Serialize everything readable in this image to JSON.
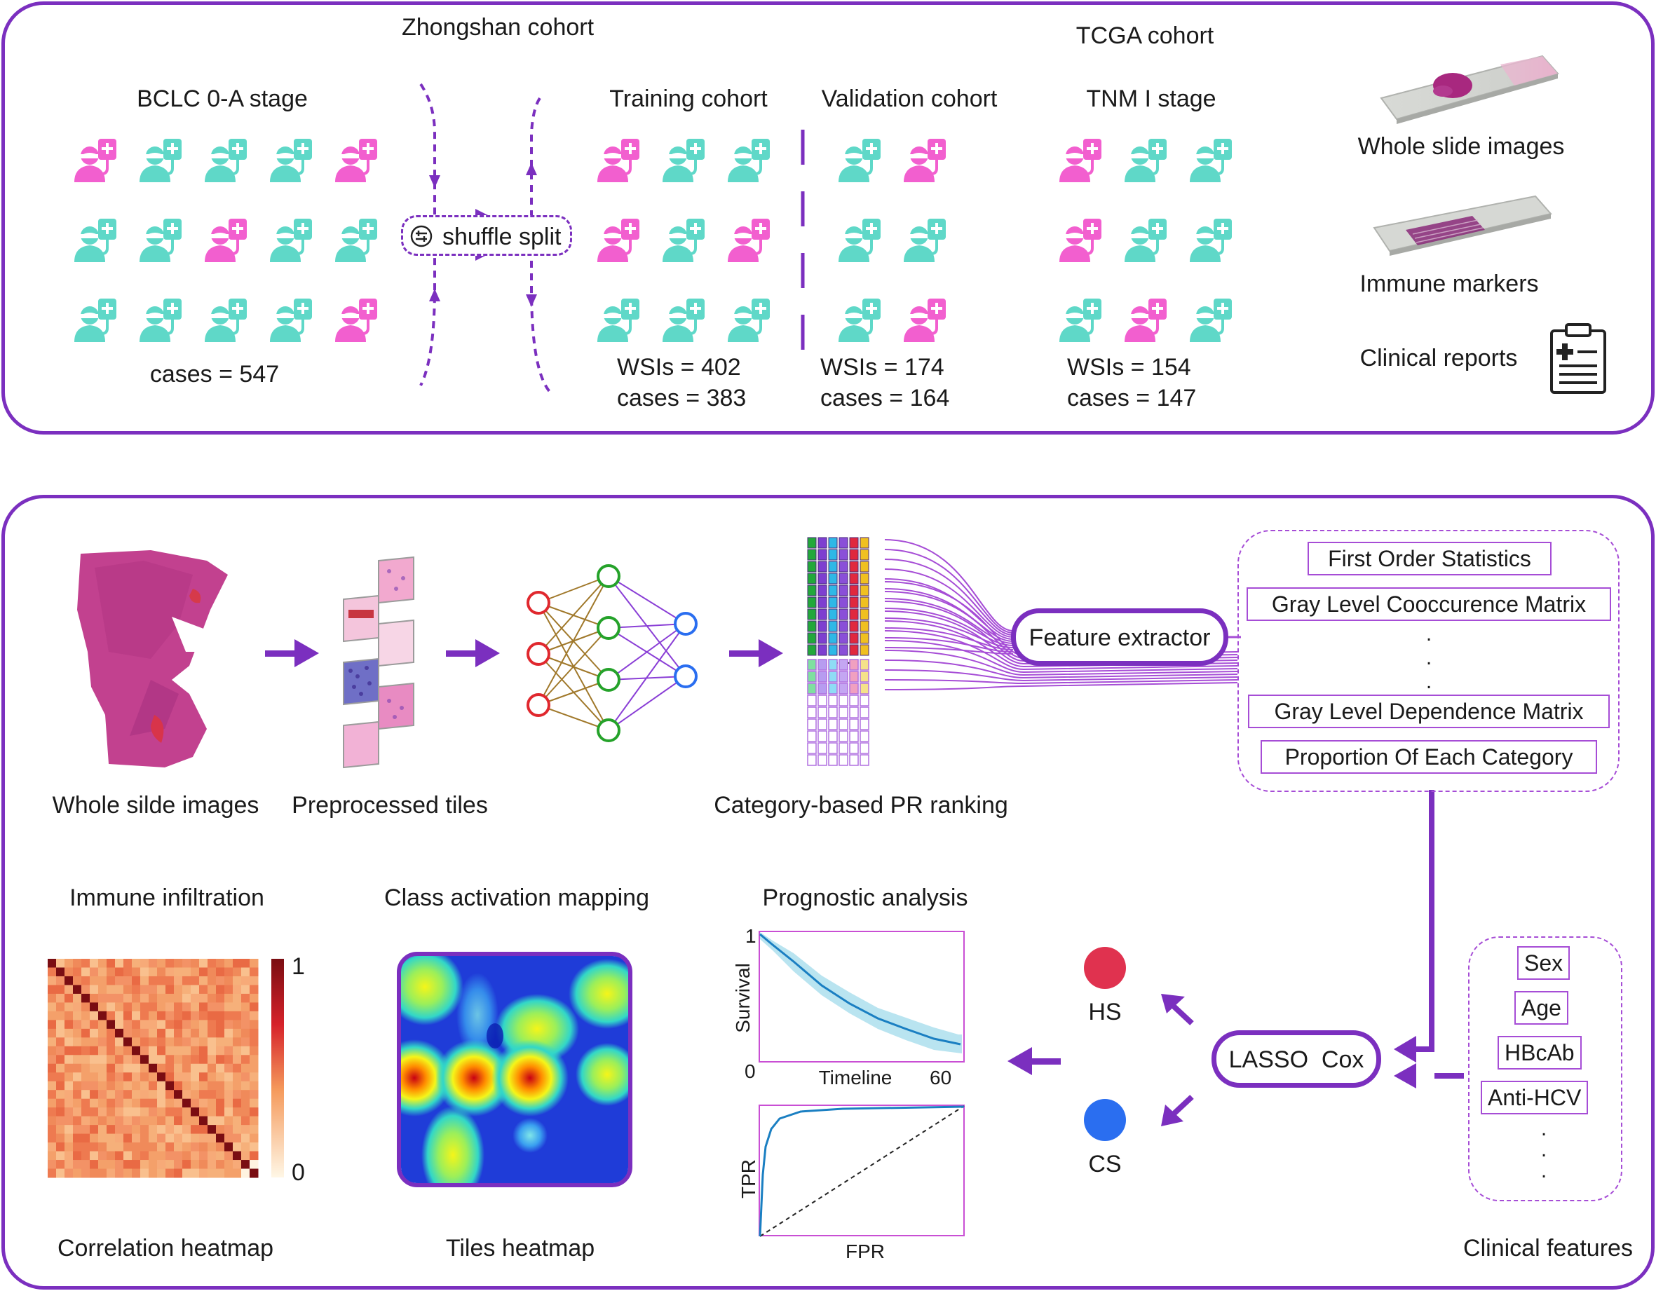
{
  "top": {
    "zhongshan_title": "Zhongshan cohort",
    "tcga_title": "TCGA cohort",
    "bclc_title": "BCLC 0-A stage",
    "bclc_cases": "cases = 547",
    "shuffle_label": "shuffle split",
    "training_title": "Training cohort",
    "training_wsis": "WSIs  = 402",
    "training_cases": "cases = 383",
    "validation_title": "Validation cohort",
    "validation_wsis": "WSIs  = 174",
    "validation_cases": "cases = 164",
    "tnm_title": "TNM I stage",
    "tnm_wsis": "WSIs  = 154",
    "tnm_cases": "cases = 147",
    "wsi_label": "Whole slide images",
    "immune_label": "Immune markers",
    "clinical_label": "Clinical reports"
  },
  "bottom": {
    "wsi_caption": "Whole silde images",
    "tiles_caption": "Preprocessed tiles",
    "ranking_caption": "Category-based PR ranking",
    "feature_extractor": "Feature extractor",
    "feature_list": [
      "First Order Statistics",
      "Gray Level Cooccurence Matrix",
      "Gray Level Dependence Matrix",
      "Proportion Of Each Category"
    ],
    "immune_title": "Immune infiltration",
    "cam_title": "Class activation mapping",
    "prognostic_title": "Prognostic analysis",
    "heatmap_caption": "Correlation heatmap",
    "tiles_heatmap_caption": "Tiles heatmap",
    "colorbar_max": "1",
    "colorbar_min": "0",
    "survival_ylabel": "Survival",
    "survival_xlabel": "Timeline",
    "survival_y_max": "1",
    "survival_origin": "0",
    "survival_x_max": "60",
    "roc_ylabel": "TPR",
    "roc_xlabel": "FPR",
    "lasso_label": "LASSO  Cox",
    "hs_label": "HS",
    "cs_label": "CS",
    "clinical_features": [
      "Sex",
      "Age",
      "HBcAb",
      "Anti-HCV"
    ],
    "clinical_caption": "Clinical features"
  },
  "colors": {
    "panel_border": "#7b2fbf",
    "patient_pink": "#f25fcf",
    "patient_teal": "#5fd8c8",
    "hs_red": "#e0324f",
    "cs_blue": "#2a6ef0"
  }
}
